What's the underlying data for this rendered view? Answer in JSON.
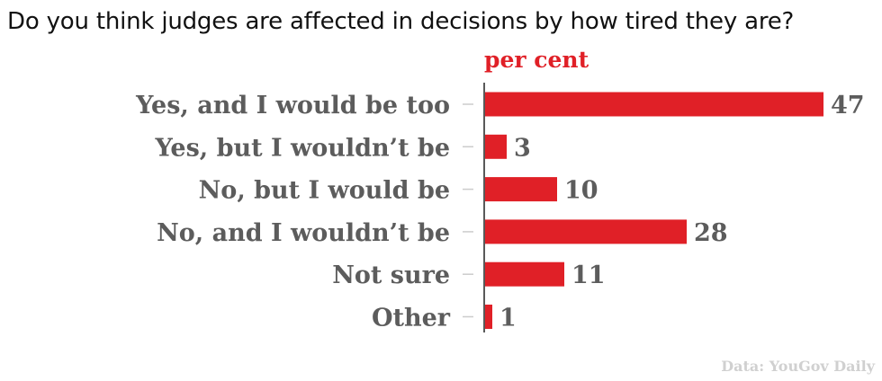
{
  "chart_data": {
    "type": "bar",
    "orientation": "horizontal",
    "title": "Do you think judges are affected in decisions by how tired they are?",
    "unit_label": "per cent",
    "source": "Data: YouGov Daily",
    "categories": [
      "Yes, and I would be too",
      "Yes, but I wouldn’t be",
      "No, but I would be",
      "No, and I wouldn’t be",
      "Not sure",
      "Other"
    ],
    "values": [
      47,
      3,
      10,
      28,
      11,
      1
    ],
    "xlim": [
      0,
      47
    ],
    "grid": false,
    "bar_color": "#e02027"
  }
}
